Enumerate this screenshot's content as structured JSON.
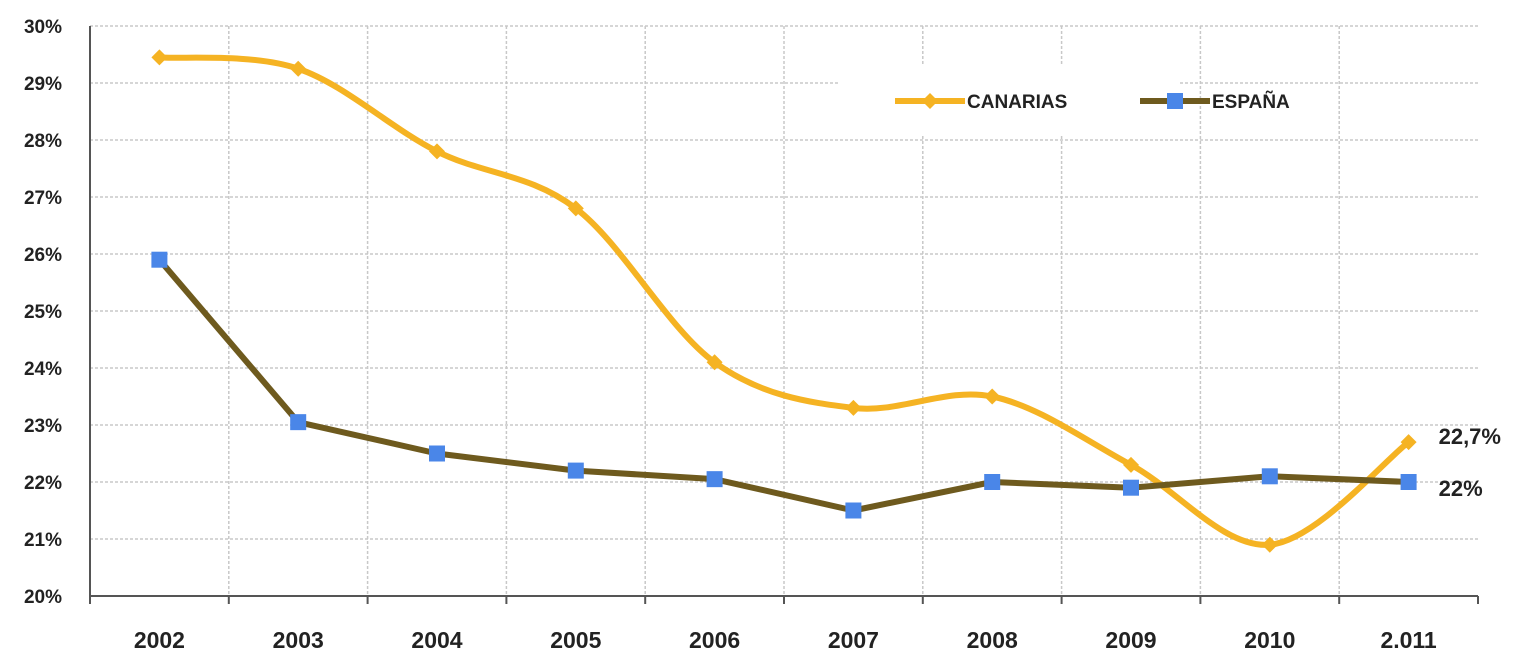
{
  "chart_data": {
    "type": "line",
    "title": "",
    "xlabel": "",
    "ylabel": "",
    "x": [
      "2002",
      "2003",
      "2004",
      "2005",
      "2006",
      "2007",
      "2008",
      "2009",
      "2010",
      "2.011"
    ],
    "yticks": [
      "20%",
      "21%",
      "22%",
      "23%",
      "24%",
      "25%",
      "26%",
      "27%",
      "28%",
      "29%",
      "30%"
    ],
    "ylim": [
      20,
      30
    ],
    "grid": true,
    "legend_position": "top-right",
    "series": [
      {
        "name": "CANARIAS",
        "color": "#f5b323",
        "marker": "diamond",
        "smooth": true,
        "values": [
          29.45,
          29.25,
          27.8,
          26.8,
          24.1,
          23.3,
          23.5,
          22.3,
          20.9,
          22.7
        ],
        "end_label": "22,7%"
      },
      {
        "name": "ESPAÑA",
        "color": "#6e5a1e",
        "marker_color": "#4a86e8",
        "marker": "square",
        "smooth": false,
        "values": [
          25.9,
          23.05,
          22.5,
          22.2,
          22.05,
          21.5,
          22.0,
          21.9,
          22.1,
          22.0
        ],
        "end_label": "22%"
      }
    ]
  }
}
